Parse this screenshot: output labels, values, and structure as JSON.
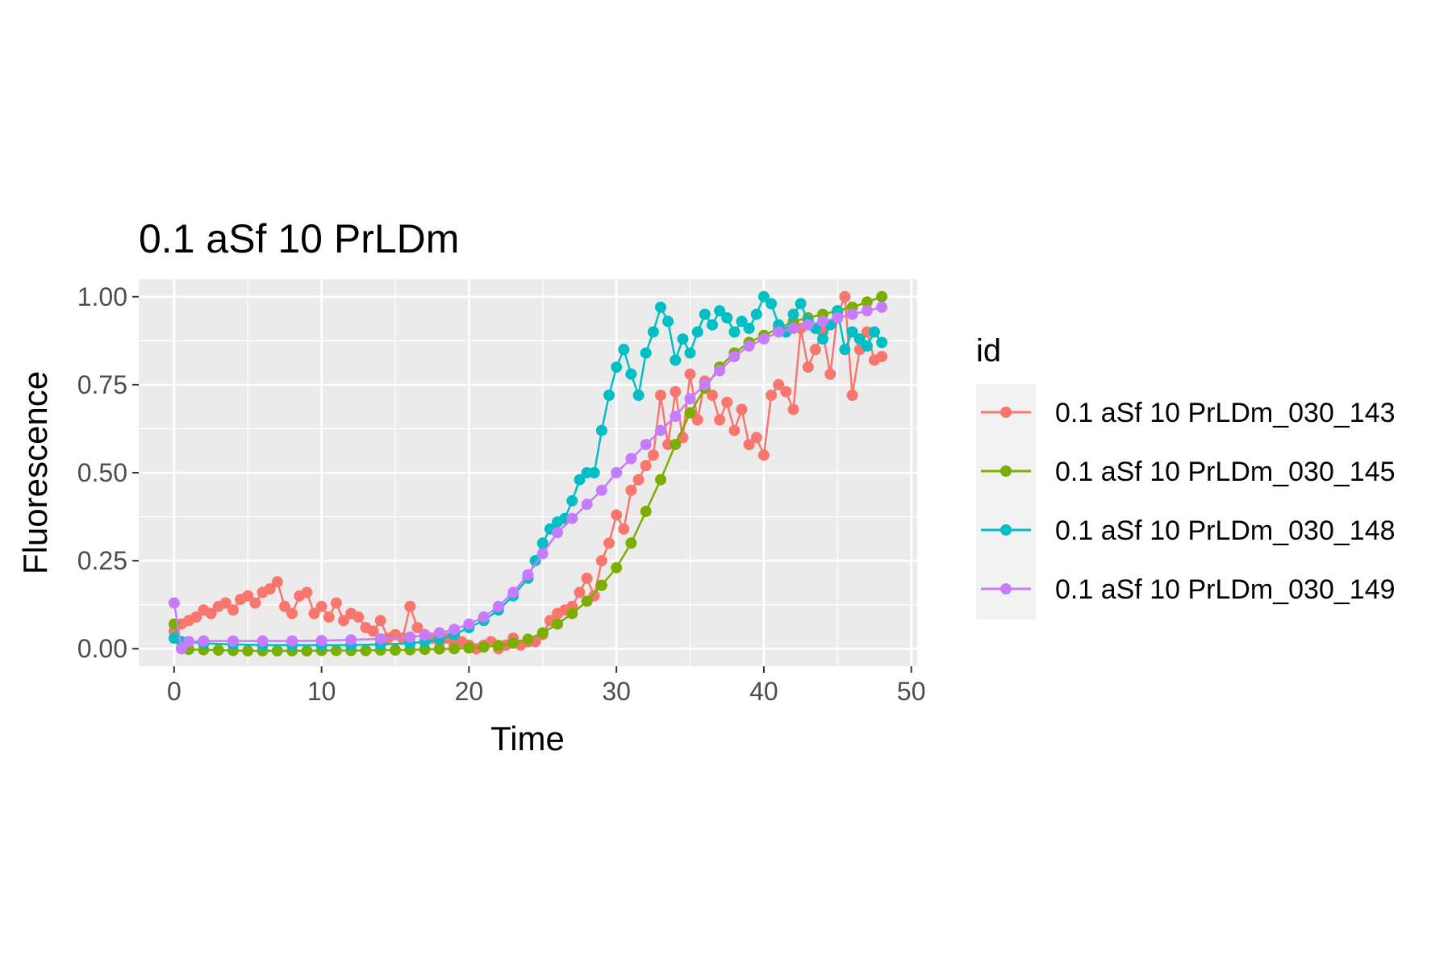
{
  "chart_data": {
    "type": "line",
    "title": "0.1 aSf 10 PrLDm",
    "xlabel": "Time",
    "ylabel": "Fluorescence",
    "xlim": [
      -2.4,
      50.4
    ],
    "ylim": [
      -0.05,
      1.05
    ],
    "x_ticks": [
      0,
      10,
      20,
      30,
      40,
      50
    ],
    "x_tick_labels": [
      "0",
      "10",
      "20",
      "30",
      "40",
      "50"
    ],
    "y_ticks": [
      0,
      0.25,
      0.5,
      0.75,
      1
    ],
    "y_tick_labels": [
      "0.00",
      "0.25",
      "0.50",
      "0.75",
      "1.00"
    ],
    "grid": true,
    "panel_background": "#ebebeb",
    "legend": {
      "title": "id",
      "position": "right"
    },
    "series": [
      {
        "name": "0.1 aSf 10 PrLDm_030_143",
        "color": "#f8766d",
        "x": [
          0,
          0.5,
          1,
          1.5,
          2,
          2.5,
          3,
          3.5,
          4,
          4.5,
          5,
          5.5,
          6,
          6.5,
          7,
          7.5,
          8,
          8.5,
          9,
          9.5,
          10,
          10.5,
          11,
          11.5,
          12,
          12.5,
          13,
          13.5,
          14,
          14.5,
          15,
          15.5,
          16,
          16.5,
          17,
          17.5,
          18,
          18.5,
          19,
          19.5,
          20,
          20.5,
          21,
          21.5,
          22,
          22.5,
          23,
          23.5,
          24,
          24.5,
          25,
          25.5,
          26,
          26.5,
          27,
          27.5,
          28,
          28.5,
          29,
          29.5,
          30,
          30.5,
          31,
          31.5,
          32,
          32.5,
          33,
          33.5,
          34,
          34.5,
          35,
          35.5,
          36,
          36.5,
          37,
          37.5,
          38,
          38.5,
          39,
          39.5,
          40,
          40.5,
          41,
          41.5,
          42,
          42.5,
          43,
          43.5,
          44,
          44.5,
          45,
          45.5,
          46,
          46.5,
          47,
          47.5,
          48
        ],
        "y": [
          0.05,
          0.07,
          0.08,
          0.09,
          0.11,
          0.1,
          0.12,
          0.13,
          0.11,
          0.14,
          0.15,
          0.13,
          0.16,
          0.17,
          0.19,
          0.12,
          0.1,
          0.15,
          0.16,
          0.1,
          0.12,
          0.09,
          0.13,
          0.08,
          0.1,
          0.09,
          0.06,
          0.05,
          0.08,
          0.03,
          0.04,
          0.03,
          0.12,
          0.06,
          0.04,
          0.03,
          0.02,
          0.03,
          0.01,
          0.02,
          0.01,
          0.0,
          0.01,
          0.02,
          0.0,
          0.01,
          0.03,
          0.01,
          0.02,
          0.02,
          0.04,
          0.08,
          0.1,
          0.11,
          0.12,
          0.16,
          0.2,
          0.15,
          0.25,
          0.3,
          0.38,
          0.34,
          0.45,
          0.48,
          0.52,
          0.55,
          0.72,
          0.58,
          0.73,
          0.6,
          0.78,
          0.65,
          0.76,
          0.72,
          0.65,
          0.7,
          0.62,
          0.68,
          0.58,
          0.6,
          0.55,
          0.72,
          0.75,
          0.73,
          0.68,
          0.91,
          0.8,
          0.85,
          0.9,
          0.78,
          0.95,
          1.0,
          0.72,
          0.85,
          0.9,
          0.82,
          0.83
        ],
        "marker": "circle"
      },
      {
        "name": "0.1 aSf 10 PrLDm_030_145",
        "color": "#7cae00",
        "x": [
          0,
          0.5,
          1,
          2,
          3,
          4,
          5,
          6,
          7,
          8,
          9,
          10,
          11,
          12,
          13,
          14,
          15,
          16,
          17,
          18,
          19,
          20,
          21,
          22,
          23,
          24,
          25,
          26,
          27,
          28,
          29,
          30,
          31,
          32,
          33,
          34,
          35,
          36,
          37,
          38,
          39,
          40,
          41,
          42,
          43,
          44,
          45,
          46,
          47,
          48
        ],
        "y": [
          0.07,
          0.0,
          -0.002,
          -0.003,
          -0.004,
          -0.005,
          -0.006,
          -0.006,
          -0.006,
          -0.006,
          -0.006,
          -0.005,
          -0.005,
          -0.005,
          -0.005,
          -0.004,
          -0.004,
          -0.003,
          -0.002,
          -0.001,
          0.0,
          0.002,
          0.005,
          0.009,
          0.016,
          0.027,
          0.045,
          0.07,
          0.1,
          0.135,
          0.18,
          0.23,
          0.3,
          0.39,
          0.48,
          0.58,
          0.67,
          0.74,
          0.8,
          0.84,
          0.87,
          0.89,
          0.91,
          0.93,
          0.94,
          0.95,
          0.96,
          0.97,
          0.985,
          1.0
        ],
        "marker": "circle"
      },
      {
        "name": "0.1 aSf 10 PrLDm_030_148",
        "color": "#00bfc4",
        "x": [
          0,
          0.5,
          1,
          2,
          4,
          6,
          8,
          10,
          12,
          14,
          16,
          17,
          18,
          19,
          20,
          21,
          22,
          23,
          24,
          24.5,
          25,
          25.5,
          26,
          26.5,
          27,
          27.5,
          28,
          28.5,
          29,
          29.5,
          30,
          30.5,
          31,
          31.5,
          32,
          32.5,
          33,
          33.5,
          34,
          34.5,
          35,
          35.5,
          36,
          36.5,
          37,
          37.5,
          38,
          38.5,
          39,
          39.5,
          40,
          40.5,
          41,
          41.5,
          42,
          42.5,
          43,
          43.5,
          44,
          44.5,
          45,
          45.5,
          46,
          46.5,
          47,
          47.5,
          48
        ],
        "y": [
          0.03,
          0.02,
          0.02,
          0.015,
          0.012,
          0.01,
          0.01,
          0.01,
          0.01,
          0.012,
          0.015,
          0.02,
          0.028,
          0.04,
          0.06,
          0.08,
          0.11,
          0.15,
          0.2,
          0.25,
          0.3,
          0.34,
          0.36,
          0.37,
          0.42,
          0.48,
          0.5,
          0.5,
          0.62,
          0.72,
          0.8,
          0.85,
          0.78,
          0.72,
          0.84,
          0.9,
          0.97,
          0.93,
          0.82,
          0.88,
          0.84,
          0.9,
          0.95,
          0.92,
          0.96,
          0.94,
          0.9,
          0.93,
          0.91,
          0.95,
          1.0,
          0.98,
          0.92,
          0.9,
          0.95,
          0.98,
          0.93,
          0.91,
          0.88,
          0.92,
          0.96,
          0.85,
          0.9,
          0.88,
          0.86,
          0.9,
          0.87
        ],
        "marker": "circle"
      },
      {
        "name": "0.1 aSf 10 PrLDm_030_149",
        "color": "#c77cff",
        "x": [
          0,
          0.5,
          1,
          2,
          4,
          6,
          8,
          10,
          12,
          14,
          16,
          17,
          18,
          19,
          20,
          21,
          22,
          23,
          24,
          25,
          26,
          27,
          28,
          29,
          30,
          31,
          32,
          33,
          34,
          35,
          36,
          37,
          38,
          39,
          40,
          41,
          42,
          43,
          44,
          45,
          46,
          47,
          48
        ],
        "y": [
          0.13,
          0.0,
          0.02,
          0.022,
          0.022,
          0.022,
          0.022,
          0.023,
          0.025,
          0.028,
          0.033,
          0.038,
          0.045,
          0.055,
          0.07,
          0.09,
          0.12,
          0.16,
          0.21,
          0.27,
          0.33,
          0.37,
          0.41,
          0.45,
          0.5,
          0.54,
          0.58,
          0.62,
          0.66,
          0.71,
          0.75,
          0.79,
          0.83,
          0.86,
          0.88,
          0.9,
          0.91,
          0.92,
          0.93,
          0.94,
          0.95,
          0.96,
          0.97
        ],
        "marker": "circle"
      }
    ]
  }
}
